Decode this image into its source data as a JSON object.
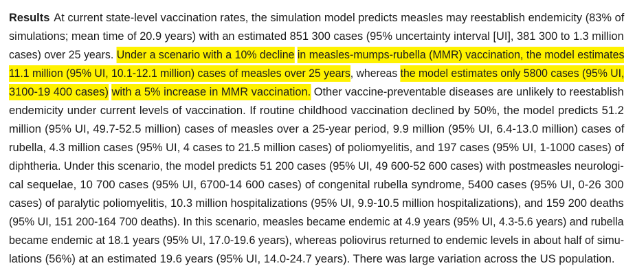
{
  "abstract": {
    "heading": "Results",
    "highlight_color": "#fff200",
    "lines": [
      [
        {
          "text": "At current state-level vaccination rates, the simulation model predicts measles may reestablish endemicity (83% of"
        }
      ],
      [
        {
          "text": "simulations; mean time of 20.9 years) with an estimated 851 300 cases (95% uncertainty interval [UI], 381 300 to 1.3 million"
        }
      ],
      [
        {
          "text": "cases) over 25 years. "
        },
        {
          "text": "Under a scenario with a 10% decline",
          "hl": true
        },
        {
          "text": " "
        },
        {
          "text": "in measles-mumps-rubella (MMR) vaccination, the model estimates",
          "hl": true
        }
      ],
      [
        {
          "text": "11.1 million (95% UI, 10.1-12.1 million) cases of measles over 25 years",
          "hl": true
        },
        {
          "text": ", whereas "
        },
        {
          "text": "the model estimates only 5800 cases (95% UI,",
          "hl": true
        }
      ],
      [
        {
          "text": "3100-19 400 cases)",
          "hl": true
        },
        {
          "text": " "
        },
        {
          "text": "with a 5% increase in MMR vaccination.",
          "hl": true
        },
        {
          "text": " Other vaccine-preventable diseases are unlikely to reestablish"
        }
      ],
      [
        {
          "text": "endemicity under current levels of vaccination. If routine childhood vaccination declined by 50%, the model predicts 51.2"
        }
      ],
      [
        {
          "text": "million (95% UI, 49.7-52.5 million) cases of measles over a 25-year period, 9.9 million (95% UI, 6.4-13.0 million) cases of"
        }
      ],
      [
        {
          "text": "rubella, 4.3 million cases (95% UI, 4 cases to 21.5 million cases) of poliomyelitis, and 197 cases (95% UI, 1-1000 cases) of"
        }
      ],
      [
        {
          "text": "diphtheria. Under this scenario, the model predicts 51 200 cases (95% UI, 49 600-52 600 cases) with postmeasles neurologi-"
        }
      ],
      [
        {
          "text": "cal sequelae, 10 700 cases (95% UI, 6700-14 600 cases) of congenital rubella syndrome, 5400 cases (95% UI, 0-26 300"
        }
      ],
      [
        {
          "text": "cases) of paralytic poliomyelitis, 10.3 million hospitalizations (95% UI, 9.9-10.5 million hospitalizations), and 159 200 deaths"
        }
      ],
      [
        {
          "text": "(95% UI, 151 200-164 700 deaths). In this scenario, measles became endemic at 4.9 years (95% UI, 4.3-5.6 years) and rubella"
        }
      ],
      [
        {
          "text": "became endemic at 18.1 years (95% UI, 17.0-19.6 years), whereas poliovirus returned to endemic levels in about half of simu-"
        }
      ],
      [
        {
          "text": "lations (56%) at an estimated 19.6 years (95% UI, 14.0-24.7 years). There was large variation across the US population."
        }
      ]
    ]
  }
}
